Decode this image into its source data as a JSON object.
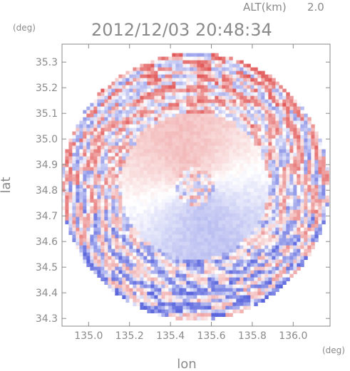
{
  "chart_data": {
    "type": "heatmap",
    "title": "2012/12/03 20:48:34",
    "altitude_label": "ALT(km)",
    "altitude_value": "2.0",
    "xlabel": "lon",
    "ylabel": "lat",
    "x_unit": "(deg)",
    "y_unit": "(deg)",
    "xlim": [
      134.87,
      136.18
    ],
    "ylim": [
      34.27,
      35.37
    ],
    "x_ticks": [
      "135.0",
      "135.2",
      "135.4",
      "135.6",
      "135.8",
      "136.0"
    ],
    "y_ticks": [
      "34.3",
      "34.4",
      "34.5",
      "34.6",
      "34.7",
      "34.8",
      "34.9",
      "35.0",
      "35.1",
      "35.2",
      "35.3"
    ],
    "center": {
      "lon": 135.52,
      "lat": 34.815
    },
    "radius_deg_lat": 0.52,
    "colors": {
      "positive": "#e25a5a",
      "negative": "#5b66dd",
      "zero": "#ffffff",
      "frame": "#8a8a8a"
    }
  }
}
